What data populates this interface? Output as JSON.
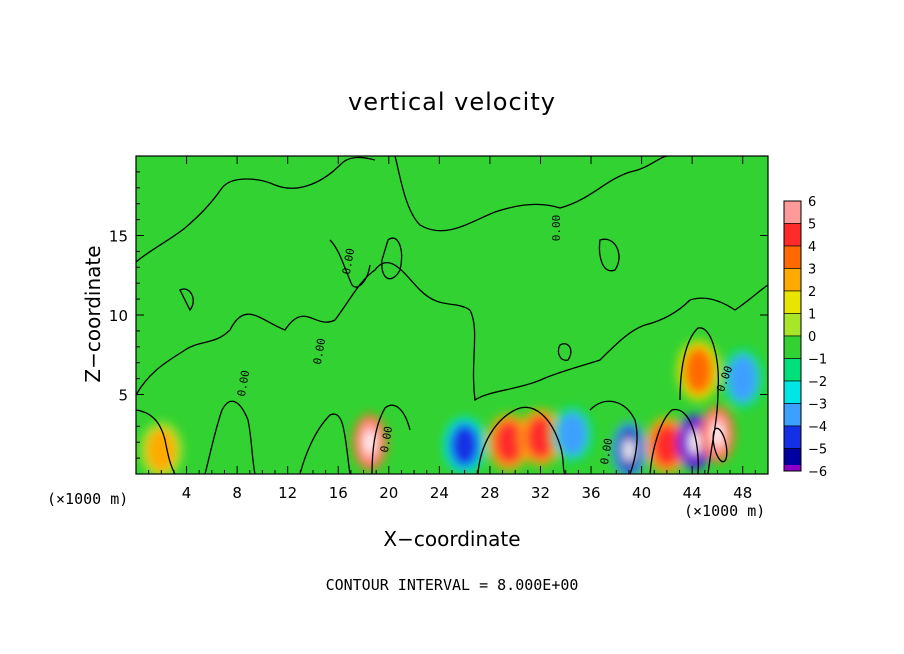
{
  "chart_data": {
    "type": "heatmap",
    "title": "vertical velocity",
    "xlabel": "X−coordinate",
    "ylabel": "Z−coordinate",
    "x_unit_label": "(×1000 m)",
    "x_ticks": [
      "4",
      "8",
      "12",
      "16",
      "20",
      "24",
      "28",
      "32",
      "36",
      "40",
      "44",
      "48"
    ],
    "y_ticks": [
      "5",
      "10",
      "15"
    ],
    "xlim": [
      0,
      50
    ],
    "ylim": [
      0,
      20
    ],
    "colorbar": {
      "levels": [
        "6",
        "5",
        "4",
        "3",
        "2",
        "1",
        "0",
        "−1",
        "−2",
        "−3",
        "−4",
        "−5",
        "−6"
      ],
      "colors": [
        "#ff9a9a",
        "#ff2a2a",
        "#ff6a00",
        "#ffaa00",
        "#e8e600",
        "#a8e62a",
        "#32d232",
        "#00e07a",
        "#00e6e6",
        "#3ca0ff",
        "#1430e6",
        "#0000a0",
        "#8c00c8"
      ]
    },
    "contour_label": "0.00",
    "background_value": "0 to 1 (green)",
    "features": [
      {
        "x": 2,
        "z": 1.5,
        "value": 2.5,
        "sign": "positive"
      },
      {
        "x": 18.5,
        "z": 2.0,
        "value": 6,
        "sign": "positive"
      },
      {
        "x": 26,
        "z": 1.8,
        "value": -4.5,
        "sign": "negative"
      },
      {
        "x": 29.5,
        "z": 2.0,
        "value": 4.5,
        "sign": "positive"
      },
      {
        "x": 32,
        "z": 2.3,
        "value": 4.5,
        "sign": "positive"
      },
      {
        "x": 34.5,
        "z": 2.5,
        "value": -3,
        "sign": "negative"
      },
      {
        "x": 39,
        "z": 1.5,
        "value": -5.5,
        "sign": "negative"
      },
      {
        "x": 42,
        "z": 1.8,
        "value": 4.5,
        "sign": "positive"
      },
      {
        "x": 44.2,
        "z": 2.0,
        "value": -6,
        "sign": "negative"
      },
      {
        "x": 44.5,
        "z": 6.5,
        "value": 4,
        "sign": "positive"
      },
      {
        "x": 46,
        "z": 2.5,
        "value": 6,
        "sign": "positive"
      },
      {
        "x": 48,
        "z": 6.0,
        "value": -3,
        "sign": "negative"
      }
    ]
  },
  "note": "CONTOUR INTERVAL = 8.000E+00"
}
